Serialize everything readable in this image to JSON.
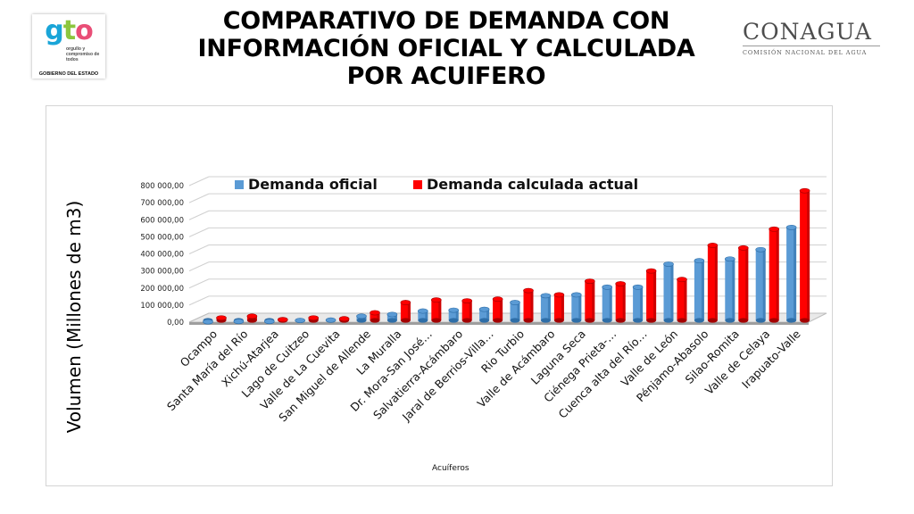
{
  "header": {
    "title_lines": [
      "COMPARATIVO DE DEMANDA CON",
      "INFORMACIÓN OFICIAL Y CALCULADA",
      "POR ACUIFERO"
    ]
  },
  "logo_gto": {
    "mark": "gto",
    "tagline": "orgullo y compromiso de todos",
    "subtitle": "GOBIERNO DEL ESTADO"
  },
  "logo_conagua": {
    "name": "CONAGUA",
    "subtitle": "COMISIÓN NACIONAL DEL AGUA"
  },
  "colors": {
    "official": "#5b9bd5",
    "official_dark": "#2e6ea8",
    "calculated": "#ff0000",
    "calculated_dark": "#a50000",
    "grid": "#d0d0d0"
  },
  "chart_data": {
    "type": "bar",
    "title": "",
    "xlabel": "Acuíferos",
    "ylabel": "Volumen (Millones de m3)",
    "ylim": [
      0,
      800000
    ],
    "yticks": [
      0,
      100000,
      200000,
      300000,
      400000,
      500000,
      600000,
      700000,
      800000
    ],
    "ytick_labels": [
      "0,00",
      "100 000,00",
      "200 000,00",
      "300 000,00",
      "400 000,00",
      "500 000,00",
      "600 000,00",
      "700 000,00",
      "800 000,00"
    ],
    "legend_position": "top",
    "categories": [
      "Ocampo",
      "Santa María del Río",
      "Xichú-Atarjea",
      "Lago de Cuitzeo",
      "Valle de La Cuevita",
      "San Miguel de Allende",
      "La Muralla",
      "Dr. Mora-San José…",
      "Salvatierra-Acámbaro",
      "Jaral de Berrios-Villa…",
      "Rio Turbio",
      "Valle de Acámbaro",
      "Laguna Seca",
      "Ciénega Prieta-…",
      "Cuenca alta del Río…",
      "Valle de León",
      "Pénjamo-Abasolo",
      "Silao-Romita",
      "Valle de Celaya",
      "Irapuato-Valle"
    ],
    "series": [
      {
        "name": "Demanda oficial",
        "values": [
          2000,
          4000,
          4000,
          10000,
          12000,
          35000,
          45000,
          65000,
          70000,
          75000,
          115000,
          155000,
          160000,
          205000,
          205000,
          340000,
          360000,
          370000,
          425000,
          555000
        ]
      },
      {
        "name": "Demanda calculada actual",
        "values": [
          25000,
          35000,
          15000,
          25000,
          20000,
          55000,
          115000,
          130000,
          125000,
          135000,
          185000,
          160000,
          240000,
          225000,
          300000,
          250000,
          450000,
          435000,
          545000,
          770000
        ]
      }
    ]
  }
}
